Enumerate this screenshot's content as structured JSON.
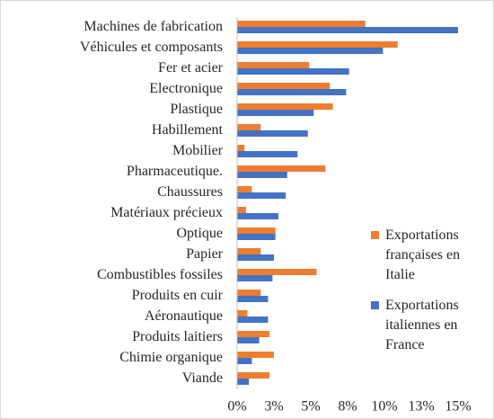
{
  "chart_data": {
    "type": "barh",
    "categories": [
      "Machines de fabrication",
      "Véhicules et composants",
      "Fer et acier",
      "Electronique",
      "Plastique",
      "Habillement",
      "Mobilier",
      "Pharmaceutique.",
      "Chaussures",
      "Matériaux précieux",
      "Optique",
      "Papier",
      "Combustibles fossiles",
      "Produits en cuir",
      "Aéronautique",
      "Produits laitiers",
      "Chimie organique",
      "Viande"
    ],
    "series": [
      {
        "name": "Exportations françaises en Italie",
        "color": "#ed7d31",
        "values": [
          8.7,
          10.9,
          4.9,
          6.3,
          6.5,
          1.6,
          0.5,
          6.0,
          1.0,
          0.6,
          2.6,
          1.6,
          5.4,
          1.6,
          0.7,
          2.2,
          2.5,
          2.2
        ]
      },
      {
        "name": "Exportations italiennes en France",
        "color": "#4472c4",
        "values": [
          15.0,
          9.9,
          7.6,
          7.4,
          5.2,
          4.8,
          4.1,
          3.4,
          3.3,
          2.8,
          2.6,
          2.5,
          2.4,
          2.1,
          2.1,
          1.5,
          1.0,
          0.8
        ]
      }
    ],
    "xlim": [
      0,
      15
    ],
    "xticks": [
      {
        "value": 0,
        "label": "0%"
      },
      {
        "value": 2.5,
        "label": "3%"
      },
      {
        "value": 5,
        "label": "5%"
      },
      {
        "value": 7.5,
        "label": "8%"
      },
      {
        "value": 10,
        "label": "10%"
      },
      {
        "value": 12.5,
        "label": "13%"
      },
      {
        "value": 15,
        "label": "15%"
      }
    ],
    "grid": false,
    "legend": "right"
  }
}
